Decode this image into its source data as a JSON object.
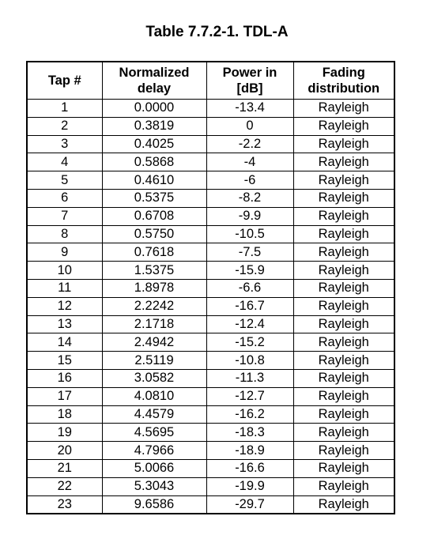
{
  "caption": "Table 7.7.2-1. TDL-A",
  "columns": [
    {
      "lines": [
        "Tap #"
      ]
    },
    {
      "lines": [
        "Normalized",
        "delay"
      ]
    },
    {
      "lines": [
        "Power in",
        "[dB]"
      ]
    },
    {
      "lines": [
        "Fading",
        "distribution"
      ]
    }
  ],
  "rows": [
    [
      "1",
      "0.0000",
      "-13.4",
      "Rayleigh"
    ],
    [
      "2",
      "0.3819",
      "0",
      "Rayleigh"
    ],
    [
      "3",
      "0.4025",
      "-2.2",
      "Rayleigh"
    ],
    [
      "4",
      "0.5868",
      "-4",
      "Rayleigh"
    ],
    [
      "5",
      "0.4610",
      "-6",
      "Rayleigh"
    ],
    [
      "6",
      "0.5375",
      "-8.2",
      "Rayleigh"
    ],
    [
      "7",
      "0.6708",
      "-9.9",
      "Rayleigh"
    ],
    [
      "8",
      "0.5750",
      "-10.5",
      "Rayleigh"
    ],
    [
      "9",
      "0.7618",
      "-7.5",
      "Rayleigh"
    ],
    [
      "10",
      "1.5375",
      "-15.9",
      "Rayleigh"
    ],
    [
      "11",
      "1.8978",
      "-6.6",
      "Rayleigh"
    ],
    [
      "12",
      "2.2242",
      "-16.7",
      "Rayleigh"
    ],
    [
      "13",
      "2.1718",
      "-12.4",
      "Rayleigh"
    ],
    [
      "14",
      "2.4942",
      "-15.2",
      "Rayleigh"
    ],
    [
      "15",
      "2.5119",
      "-10.8",
      "Rayleigh"
    ],
    [
      "16",
      "3.0582",
      "-11.3",
      "Rayleigh"
    ],
    [
      "17",
      "4.0810",
      "-12.7",
      "Rayleigh"
    ],
    [
      "18",
      "4.4579",
      "-16.2",
      "Rayleigh"
    ],
    [
      "19",
      "4.5695",
      "-18.3",
      "Rayleigh"
    ],
    [
      "20",
      "4.7966",
      "-18.9",
      "Rayleigh"
    ],
    [
      "21",
      "5.0066",
      "-16.6",
      "Rayleigh"
    ],
    [
      "22",
      "5.3043",
      "-19.9",
      "Rayleigh"
    ],
    [
      "23",
      "9.6586",
      "-29.7",
      "Rayleigh"
    ]
  ]
}
